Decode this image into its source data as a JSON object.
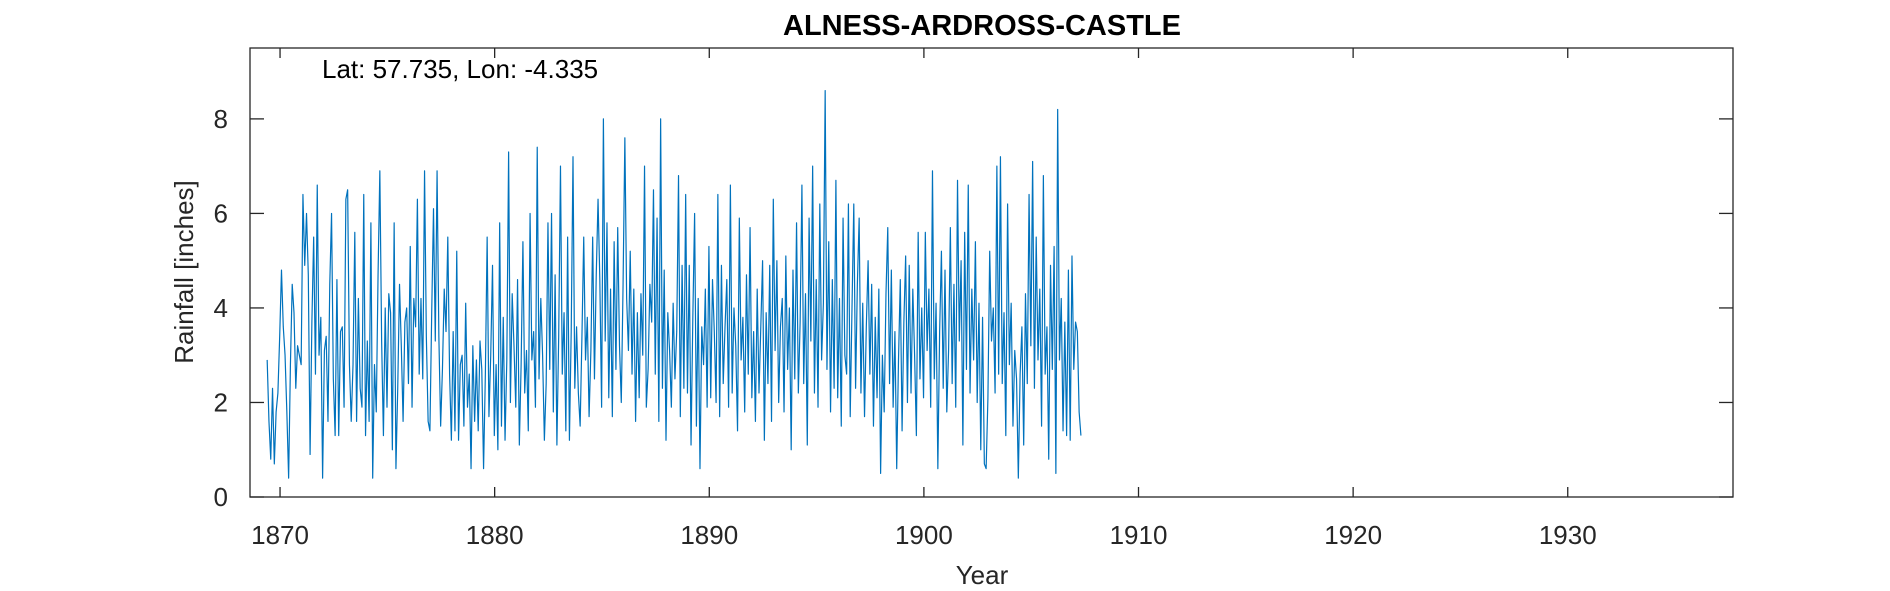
{
  "chart_data": {
    "type": "line",
    "title": "ALNESS-ARDROSS-CASTLE",
    "annotation": "Lat: 57.735, Lon: -4.335",
    "xlabel": "Year",
    "ylabel": "Rainfall [inches]",
    "xlim": [
      1868.6,
      1937.7
    ],
    "ylim": [
      0,
      9.5
    ],
    "xticks": [
      1870,
      1880,
      1890,
      1900,
      1910,
      1920,
      1930
    ],
    "yticks": [
      0,
      2,
      4,
      6,
      8
    ],
    "grid": false,
    "line_color": "#0072BD",
    "sampling": "monthly",
    "series": [
      {
        "x_start": 1869.4,
        "x_step": 0.0833333,
        "values": [
          2.9,
          1.6,
          0.8,
          2.3,
          0.7,
          1.8,
          2.2,
          3.4,
          4.8,
          3.6,
          3.0,
          1.8,
          0.4,
          2.8,
          4.5,
          3.9,
          2.3,
          3.2,
          3.0,
          2.8,
          6.4,
          4.9,
          6.0,
          4.7,
          0.9,
          3.7,
          5.5,
          2.6,
          6.6,
          3.0,
          3.8,
          0.4,
          3.1,
          3.4,
          1.6,
          4.5,
          6.0,
          2.5,
          1.3,
          4.6,
          1.3,
          3.5,
          3.6,
          1.9,
          6.3,
          6.5,
          2.8,
          1.6,
          2.8,
          5.6,
          1.6,
          4.2,
          2.3,
          1.9,
          6.4,
          1.3,
          3.3,
          1.6,
          5.8,
          0.4,
          2.8,
          1.8,
          4.7,
          6.9,
          3.3,
          1.3,
          4.0,
          1.9,
          4.3,
          3.9,
          1.0,
          5.8,
          0.6,
          2.3,
          4.5,
          3.2,
          1.6,
          3.7,
          4.0,
          2.4,
          5.3,
          1.9,
          4.2,
          3.6,
          6.3,
          2.6,
          4.2,
          2.5,
          6.9,
          3.4,
          1.6,
          1.4,
          3.9,
          6.1,
          3.3,
          6.9,
          3.4,
          1.5,
          2.7,
          4.4,
          3.5,
          5.5,
          2.6,
          1.2,
          3.5,
          1.4,
          5.2,
          1.2,
          2.8,
          3.0,
          1.5,
          4.1,
          1.9,
          2.6,
          0.6,
          3.2,
          1.6,
          2.9,
          1.4,
          3.3,
          2.7,
          0.6,
          2.6,
          5.5,
          1.7,
          3.0,
          4.9,
          1.3,
          2.8,
          1.0,
          5.8,
          1.5,
          3.8,
          1.2,
          2.9,
          7.3,
          2.0,
          4.3,
          3.2,
          1.9,
          4.6,
          1.1,
          2.8,
          5.4,
          2.2,
          3.1,
          1.4,
          6.0,
          2.9,
          3.5,
          1.9,
          7.4,
          2.5,
          4.2,
          3.0,
          1.2,
          2.4,
          5.8,
          2.7,
          6.0,
          1.8,
          4.7,
          1.1,
          3.4,
          7.0,
          2.6,
          3.9,
          1.4,
          5.5,
          1.2,
          3.5,
          7.2,
          2.3,
          3.6,
          2.2,
          1.5,
          3.4,
          5.5,
          2.9,
          3.8,
          1.7,
          3.1,
          5.5,
          2.5,
          4.7,
          6.3,
          4.6,
          1.9,
          8.0,
          3.3,
          5.8,
          2.1,
          4.4,
          1.7,
          5.4,
          2.7,
          5.7,
          3.2,
          2.0,
          4.5,
          7.6,
          4.2,
          3.1,
          5.2,
          2.6,
          4.4,
          1.6,
          3.9,
          2.1,
          4.3,
          3.0,
          7.0,
          1.9,
          2.7,
          4.5,
          3.7,
          6.5,
          2.6,
          5.9,
          1.6,
          8.0,
          2.3,
          4.8,
          1.2,
          3.9,
          3.1,
          1.9,
          4.1,
          2.5,
          3.5,
          6.8,
          1.7,
          4.9,
          2.3,
          6.4,
          2.2,
          4.9,
          1.1,
          3.8,
          6.0,
          1.5,
          4.2,
          0.6,
          3.6,
          2.8,
          4.4,
          1.9,
          5.3,
          2.1,
          4.6,
          3.5,
          2.0,
          6.4,
          1.7,
          4.9,
          2.4,
          3.6,
          4.6,
          1.9,
          6.6,
          2.2,
          4.0,
          3.2,
          1.4,
          5.9,
          2.9,
          3.8,
          1.8,
          4.7,
          2.6,
          5.7,
          2.1,
          3.5,
          1.6,
          4.4,
          2.2,
          3.6,
          5.0,
          1.2,
          3.9,
          2.4,
          4.9,
          1.6,
          6.3,
          3.1,
          5.0,
          2.0,
          3.6,
          4.2,
          1.8,
          5.1,
          2.7,
          4.0,
          1.0,
          4.8,
          2.5,
          5.8,
          2.2,
          3.7,
          6.6,
          2.4,
          4.3,
          1.1,
          5.9,
          3.3,
          7.0,
          2.2,
          4.6,
          1.9,
          6.2,
          2.9,
          4.1,
          8.6,
          2.7,
          5.4,
          1.8,
          4.6,
          2.3,
          6.7,
          2.1,
          4.2,
          1.5,
          5.9,
          3.0,
          2.6,
          6.2,
          1.7,
          4.0,
          6.2,
          2.3,
          4.5,
          5.9,
          2.2,
          4.1,
          1.7,
          3.6,
          5.0,
          2.6,
          4.5,
          1.5,
          3.8,
          2.1,
          4.4,
          0.5,
          3.0,
          1.8,
          4.3,
          5.7,
          2.4,
          4.8,
          1.9,
          3.5,
          0.6,
          2.9,
          4.6,
          1.4,
          3.7,
          5.1,
          2.0,
          4.9,
          2.2,
          4.4,
          3.0,
          1.3,
          5.6,
          2.5,
          4.0,
          2.1,
          5.6,
          3.1,
          4.4,
          1.9,
          6.9,
          2.5,
          4.1,
          0.6,
          3.5,
          5.2,
          2.3,
          4.8,
          1.8,
          3.1,
          5.7,
          2.4,
          4.5,
          1.9,
          6.7,
          3.3,
          5.0,
          1.1,
          5.6,
          2.7,
          6.6,
          2.2,
          4.4,
          2.9,
          5.4,
          2.0,
          4.1,
          1.0,
          3.8,
          0.7,
          0.6,
          2.1,
          5.2,
          3.3,
          4.0,
          2.2,
          7.0,
          2.6,
          7.2,
          2.4,
          3.9,
          1.3,
          6.2,
          2.8,
          4.1,
          1.5,
          3.1,
          2.5,
          0.4,
          2.6,
          3.6,
          1.1,
          4.3,
          2.4,
          6.4,
          3.2,
          7.1,
          2.3,
          5.5,
          2.9,
          4.4,
          1.5,
          6.8,
          2.6,
          3.6,
          0.8,
          4.9,
          2.7,
          5.3,
          0.5,
          8.2,
          2.9,
          4.2,
          1.4,
          3.7,
          1.3,
          4.8,
          1.2,
          5.1,
          2.7,
          3.7,
          3.5,
          1.8,
          1.3
        ]
      }
    ]
  }
}
